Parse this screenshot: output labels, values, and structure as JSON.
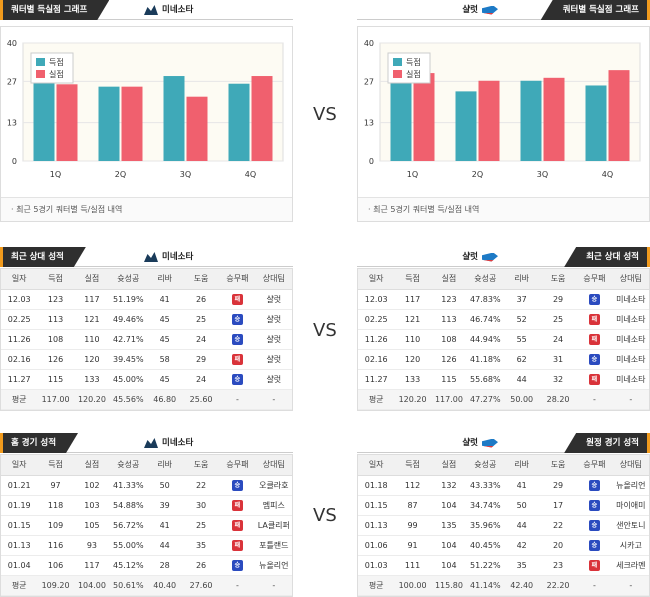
{
  "colors": {
    "score": "#3fa9b8",
    "lost": "#f0606e",
    "win": "#2b4bbf",
    "loss": "#d9333a",
    "accent": "#f29b1d"
  },
  "vs": "VS",
  "chart_data": [
    {
      "type": "bar",
      "categories": [
        "1Q",
        "2Q",
        "3Q",
        "4Q"
      ],
      "series": [
        {
          "name": "득점",
          "values": [
            26.6,
            25.2,
            28.8,
            26.2
          ]
        },
        {
          "name": "실점",
          "values": [
            26.0,
            25.2,
            21.8,
            28.8
          ]
        }
      ],
      "ylim": [
        0,
        40
      ],
      "yticks": [
        0,
        13,
        27,
        40
      ],
      "legend": "top-left"
    },
    {
      "type": "bar",
      "categories": [
        "1Q",
        "2Q",
        "3Q",
        "4Q"
      ],
      "series": [
        {
          "name": "득점",
          "values": [
            26.4,
            23.6,
            27.2,
            25.6
          ]
        },
        {
          "name": "실점",
          "values": [
            29.8,
            27.2,
            28.2,
            30.8
          ]
        }
      ],
      "ylim": [
        0,
        40
      ],
      "yticks": [
        0,
        13,
        27,
        40
      ],
      "legend": "top-left"
    }
  ],
  "left": {
    "chart_tag": "쿼터별 득실점 그래프",
    "team": "미네소타",
    "chart_caption": "·  최근 5경기 쿼터별 득/실점 내역",
    "recent_tag": "최근 상대 성적",
    "home_tag": "홈 경기 성적"
  },
  "right": {
    "chart_tag": "쿼터별 득실점 그래프",
    "team": "샬럿",
    "chart_caption": "·  최근 5경기 쿼터별 득/실점 내역",
    "recent_tag": "최근 상대 성적",
    "away_tag": "원정 경기 성적"
  },
  "columns": [
    "일자",
    "득점",
    "실점",
    "슛성공",
    "리바",
    "도움",
    "승무패",
    "상대팀"
  ],
  "result_labels": {
    "W": "승",
    "L": "패"
  },
  "tables": {
    "left_recent": {
      "rows": [
        [
          "12.03",
          "123",
          "117",
          "51.19%",
          "41",
          "26",
          "L",
          "샬럿"
        ],
        [
          "02.25",
          "113",
          "121",
          "49.46%",
          "45",
          "25",
          "W",
          "샬럿"
        ],
        [
          "11.26",
          "108",
          "110",
          "42.71%",
          "45",
          "24",
          "W",
          "샬럿"
        ],
        [
          "02.16",
          "126",
          "120",
          "39.45%",
          "58",
          "29",
          "L",
          "샬럿"
        ],
        [
          "11.27",
          "115",
          "133",
          "45.00%",
          "45",
          "24",
          "W",
          "샬럿"
        ]
      ],
      "avg": [
        "평균",
        "117.00",
        "120.20",
        "45.56%",
        "46.80",
        "25.60",
        "-",
        "-"
      ]
    },
    "right_recent": {
      "rows": [
        [
          "12.03",
          "117",
          "123",
          "47.83%",
          "37",
          "29",
          "W",
          "미네소타"
        ],
        [
          "02.25",
          "121",
          "113",
          "46.74%",
          "52",
          "25",
          "L",
          "미네소타"
        ],
        [
          "11.26",
          "110",
          "108",
          "44.94%",
          "55",
          "24",
          "L",
          "미네소타"
        ],
        [
          "02.16",
          "120",
          "126",
          "41.18%",
          "62",
          "31",
          "W",
          "미네소타"
        ],
        [
          "11.27",
          "133",
          "115",
          "55.68%",
          "44",
          "32",
          "L",
          "미네소타"
        ]
      ],
      "avg": [
        "평균",
        "120.20",
        "117.00",
        "47.27%",
        "50.00",
        "28.20",
        "-",
        "-"
      ]
    },
    "left_home": {
      "rows": [
        [
          "01.21",
          "97",
          "102",
          "41.33%",
          "50",
          "22",
          "W",
          "오클라호"
        ],
        [
          "01.19",
          "118",
          "103",
          "54.88%",
          "39",
          "30",
          "L",
          "멤피스"
        ],
        [
          "01.15",
          "109",
          "105",
          "56.72%",
          "41",
          "25",
          "L",
          "LA클리퍼"
        ],
        [
          "01.13",
          "116",
          "93",
          "55.00%",
          "44",
          "35",
          "L",
          "포틀랜드"
        ],
        [
          "01.04",
          "106",
          "117",
          "45.12%",
          "28",
          "26",
          "W",
          "뉴올리언"
        ]
      ],
      "avg": [
        "평균",
        "109.20",
        "104.00",
        "50.61%",
        "40.40",
        "27.60",
        "-",
        "-"
      ]
    },
    "right_away": {
      "rows": [
        [
          "01.18",
          "112",
          "132",
          "43.33%",
          "41",
          "29",
          "W",
          "뉴올리언"
        ],
        [
          "01.15",
          "87",
          "104",
          "34.74%",
          "50",
          "17",
          "W",
          "마이애미"
        ],
        [
          "01.13",
          "99",
          "135",
          "35.96%",
          "44",
          "22",
          "W",
          "샌안토니"
        ],
        [
          "01.06",
          "91",
          "104",
          "40.45%",
          "42",
          "20",
          "W",
          "시카고"
        ],
        [
          "01.03",
          "111",
          "104",
          "51.22%",
          "35",
          "23",
          "L",
          "세크라멘"
        ]
      ],
      "avg": [
        "평균",
        "100.00",
        "115.80",
        "41.14%",
        "42.40",
        "22.20",
        "-",
        "-"
      ]
    }
  }
}
